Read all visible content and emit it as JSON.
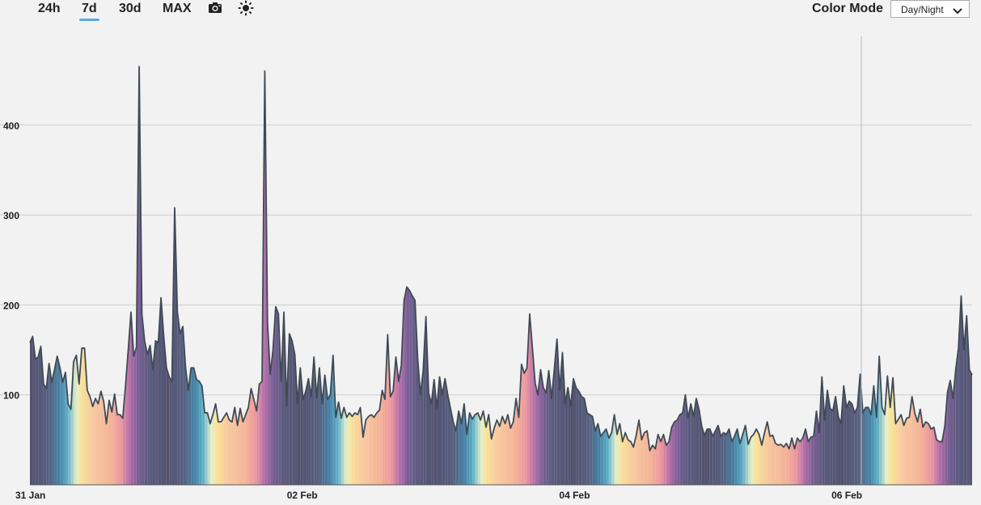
{
  "toolbar": {
    "ranges": [
      "24h",
      "7d",
      "30d",
      "MAX"
    ],
    "active_range": "7d",
    "camera_icon": "camera-icon",
    "theme_icon": "sun-icon"
  },
  "color_mode": {
    "label": "Color Mode",
    "selected": "Day/Night"
  },
  "chart_data": {
    "type": "area",
    "title": "",
    "xlabel": "",
    "ylabel": "",
    "ylim": [
      0,
      500
    ],
    "yticks": [
      100,
      200,
      300,
      400
    ],
    "y_tick_labels": [
      "100",
      "200",
      "300",
      "400"
    ],
    "xlim": [
      "2025-01-31T00:00",
      "2025-02-07T00:00"
    ],
    "x_tick_labels": [
      "31 Jan",
      "02 Feb",
      "04 Feb",
      "06 Feb"
    ],
    "x_tick_dates": [
      "2025-01-31T00:00",
      "2025-02-02T00:00",
      "2025-02-04T00:00",
      "2025-02-06T00:00"
    ],
    "grid": true,
    "fill_mode": "day/night color by hour",
    "stroke_color": "#3f4a55",
    "series": [
      {
        "values": [
          158,
          165,
          140,
          142,
          154,
          112,
          107,
          135,
          114,
          128,
          143,
          130,
          114,
          125,
          90,
          84,
          137,
          144,
          112,
          152,
          152,
          105,
          98,
          87,
          96,
          90,
          104,
          93,
          68,
          94,
          81,
          101,
          78,
          78,
          74,
          110,
          150,
          192,
          143,
          153,
          465,
          190,
          160,
          145,
          155,
          128,
          160,
          158,
          208,
          165,
          130,
          120,
          115,
          308,
          192,
          168,
          176,
          130,
          105,
          130,
          130,
          117,
          115,
          110,
          80,
          80,
          68,
          78,
          90,
          70,
          70,
          75,
          80,
          72,
          70,
          86,
          66,
          85,
          70,
          78,
          86,
          107,
          95,
          82,
          112,
          115,
          460,
          180,
          123,
          150,
          198,
          190,
          115,
          192,
          88,
          168,
          160,
          145,
          90,
          130,
          95,
          104,
          118,
          98,
          142,
          97,
          130,
          90,
          122,
          95,
          100,
          144,
          75,
          92,
          74,
          86,
          75,
          80,
          76,
          80,
          78,
          86,
          53,
          72,
          76,
          78,
          75,
          80,
          83,
          105,
          95,
          167,
          98,
          104,
          142,
          115,
          133,
          205,
          220,
          216,
          210,
          205,
          140,
          100,
          127,
          187,
          102,
          90,
          117,
          85,
          120,
          100,
          118,
          100,
          85,
          70,
          60,
          82,
          68,
          90,
          56,
          80,
          73,
          78,
          80,
          72,
          82,
          64,
          78,
          51,
          63,
          72,
          65,
          76,
          68,
          78,
          63,
          70,
          96,
          75,
          134,
          124,
          130,
          190,
          152,
          113,
          100,
          128,
          108,
          102,
          127,
          96,
          128,
          162,
          105,
          147,
          90,
          108,
          87,
          118,
          108,
          104,
          98,
          96,
          80,
          78,
          76,
          60,
          68,
          54,
          58,
          62,
          52,
          58,
          78,
          56,
          68,
          48,
          58,
          50,
          48,
          42,
          55,
          72,
          50,
          58,
          60,
          38,
          44,
          40,
          56,
          48,
          56,
          44,
          48,
          64,
          70,
          72,
          78,
          80,
          100,
          74,
          90,
          76,
          96,
          84,
          65,
          55,
          62,
          62,
          54,
          60,
          66,
          54,
          58,
          56,
          62,
          48,
          54,
          62,
          46,
          56,
          66,
          45,
          53,
          56,
          62,
          56,
          44,
          58,
          70,
          54,
          55,
          46,
          44,
          45,
          42,
          46,
          40,
          52,
          40,
          52,
          48,
          52,
          62,
          48,
          53,
          54,
          82,
          58,
          120,
          72,
          105,
          85,
          82,
          98,
          76,
          68,
          110,
          86,
          93,
          90,
          80,
          86,
          123,
          80,
          86,
          86,
          78,
          110,
          75,
          143,
          86,
          78,
          121,
          86,
          119,
          68,
          73,
          78,
          66,
          74,
          75,
          98,
          80,
          70,
          84,
          64,
          70,
          68,
          62,
          64,
          50,
          48,
          48,
          65,
          103,
          116,
          96,
          128,
          152,
          210,
          150,
          188,
          128,
          122
        ]
      }
    ]
  }
}
